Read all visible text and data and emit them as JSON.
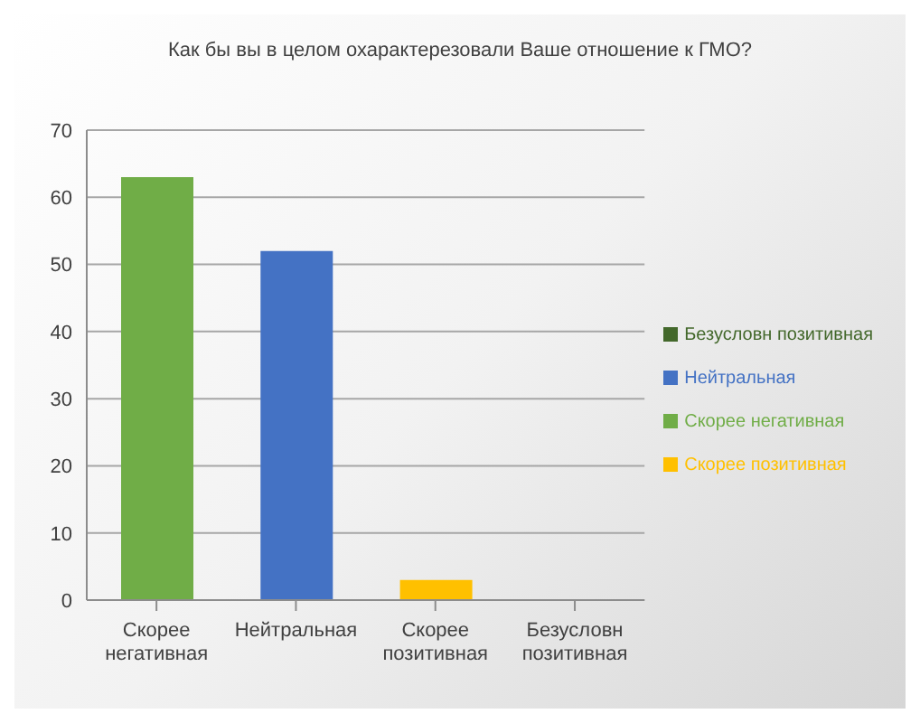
{
  "chart_data": {
    "type": "bar",
    "title": "Как бы вы в целом охарактерезовали Ваше отношение к ГМО?",
    "categories": [
      "Скорее негативная",
      "Нейтральная",
      "Скорее позитивная",
      "Безусловн позитивная"
    ],
    "series": [
      {
        "name": "Скорее негативная",
        "color": "#70ad47",
        "values": [
          63,
          null,
          null,
          null
        ]
      },
      {
        "name": "Нейтральная",
        "color": "#4472c4",
        "values": [
          null,
          52,
          null,
          null
        ]
      },
      {
        "name": "Скорее позитивная",
        "color": "#ffc000",
        "values": [
          null,
          null,
          3,
          null
        ]
      },
      {
        "name": "Безусловн позитивная",
        "color": "#43682b",
        "values": [
          null,
          null,
          null,
          0
        ]
      }
    ],
    "ylim": [
      0,
      70
    ],
    "yticks": [
      0,
      10,
      20,
      30,
      40,
      50,
      60,
      70
    ],
    "grid": "y",
    "legend": "right"
  }
}
